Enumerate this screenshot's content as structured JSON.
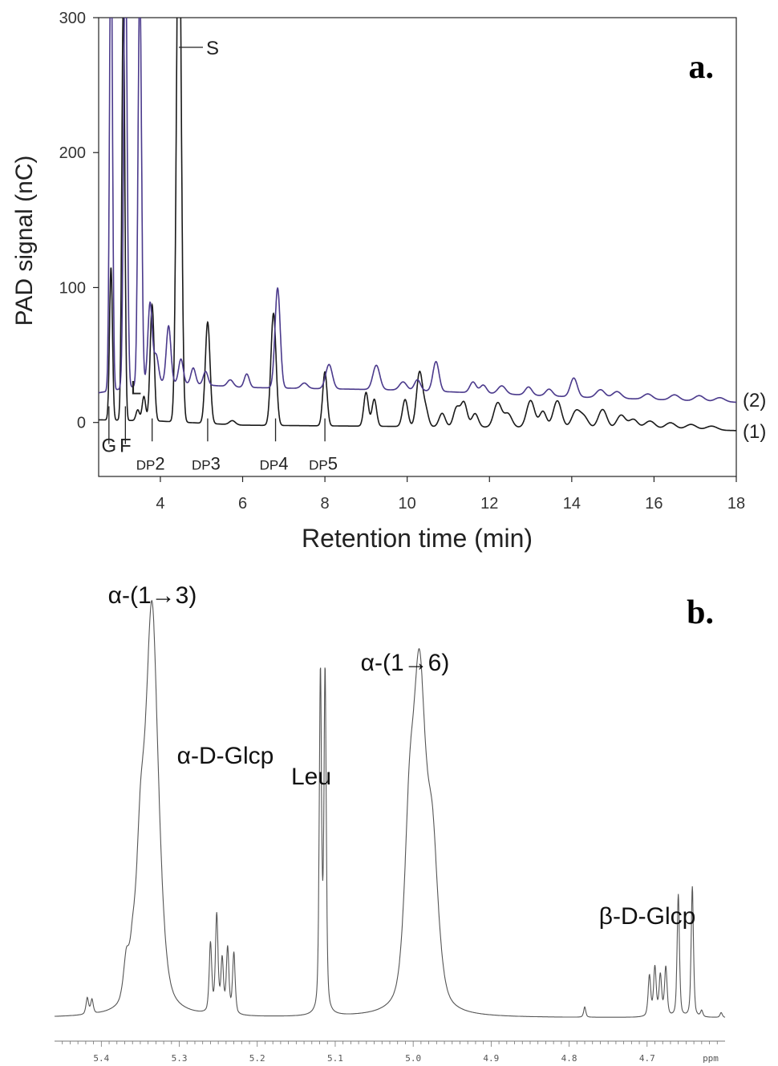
{
  "chart_data": [
    {
      "type": "line",
      "panel_label": "a.",
      "xlabel": "Retention time (min)",
      "ylabel": "PAD signal (nC)",
      "xlim": [
        2.5,
        18
      ],
      "ylim": [
        -40,
        300
      ],
      "x_ticks": [
        "4",
        "6",
        "8",
        "10",
        "12",
        "14",
        "16",
        "18"
      ],
      "y_ticks": [
        "0",
        "100",
        "200",
        "300"
      ],
      "colors": {
        "trace1": "#1a1a1a",
        "trace2": "#4b3a8c"
      },
      "series": [
        {
          "name": "(1)",
          "baseline": [
            [
              2.5,
              2
            ],
            [
              4,
              1
            ],
            [
              6,
              -2
            ],
            [
              10,
              -3
            ],
            [
              14,
              -4
            ],
            [
              18,
              -6
            ]
          ],
          "peaks": [
            [
              2.8,
              113,
              0.035
            ],
            [
              3.1,
              310,
              0.035
            ],
            [
              3.45,
              8,
              0.04
            ],
            [
              3.6,
              18,
              0.04
            ],
            [
              3.8,
              86,
              0.045
            ],
            [
              4.45,
              420,
              0.05
            ],
            [
              5.15,
              75,
              0.05
            ],
            [
              5.75,
              3,
              0.06
            ],
            [
              6.75,
              83,
              0.05
            ],
            [
              8.0,
              40,
              0.04
            ],
            [
              9.0,
              25,
              0.04
            ],
            [
              9.2,
              20,
              0.04
            ],
            [
              9.95,
              20,
              0.045
            ],
            [
              10.3,
              40,
              0.05
            ],
            [
              10.45,
              12,
              0.045
            ],
            [
              10.85,
              10,
              0.05
            ],
            [
              11.2,
              14,
              0.05
            ],
            [
              11.38,
              18,
              0.05
            ],
            [
              11.65,
              10,
              0.05
            ],
            [
              12.2,
              18,
              0.06
            ],
            [
              12.45,
              10,
              0.06
            ],
            [
              13.0,
              20,
              0.06
            ],
            [
              13.3,
              12,
              0.05
            ],
            [
              13.65,
              20,
              0.06
            ],
            [
              14.1,
              12,
              0.06
            ],
            [
              14.3,
              8,
              0.06
            ],
            [
              14.75,
              14,
              0.06
            ],
            [
              15.2,
              10,
              0.06
            ],
            [
              15.5,
              7,
              0.06
            ],
            [
              15.9,
              6,
              0.07
            ],
            [
              16.4,
              5,
              0.07
            ],
            [
              16.9,
              4,
              0.07
            ],
            [
              17.4,
              3,
              0.07
            ]
          ]
        },
        {
          "name": "(2)",
          "baseline": [
            [
              2.5,
              22
            ],
            [
              4,
              30
            ],
            [
              6,
              26
            ],
            [
              10,
              24
            ],
            [
              14,
              19
            ],
            [
              18,
              15
            ]
          ],
          "peaks": [
            [
              2.8,
              350,
              0.035
            ],
            [
              3.15,
              340,
              0.04
            ],
            [
              3.5,
              300,
              0.04
            ],
            [
              3.75,
              60,
              0.05
            ],
            [
              3.9,
              20,
              0.05
            ],
            [
              4.2,
              42,
              0.05
            ],
            [
              4.5,
              18,
              0.05
            ],
            [
              4.8,
              12,
              0.05
            ],
            [
              5.1,
              10,
              0.05
            ],
            [
              5.7,
              5,
              0.06
            ],
            [
              6.1,
              10,
              0.05
            ],
            [
              6.85,
              74,
              0.05
            ],
            [
              7.5,
              4,
              0.06
            ],
            [
              8.1,
              18,
              0.06
            ],
            [
              9.25,
              18,
              0.06
            ],
            [
              9.9,
              6,
              0.06
            ],
            [
              10.25,
              8,
              0.05
            ],
            [
              10.7,
              22,
              0.05
            ],
            [
              11.6,
              8,
              0.05
            ],
            [
              11.85,
              6,
              0.05
            ],
            [
              12.3,
              6,
              0.06
            ],
            [
              12.95,
              6,
              0.05
            ],
            [
              13.45,
              5,
              0.05
            ],
            [
              14.05,
              14,
              0.05
            ],
            [
              14.7,
              6,
              0.06
            ],
            [
              15.1,
              5,
              0.06
            ],
            [
              15.85,
              4,
              0.06
            ],
            [
              16.5,
              4,
              0.06
            ],
            [
              17.1,
              4,
              0.06
            ],
            [
              17.6,
              3,
              0.06
            ]
          ]
        }
      ],
      "trace_labels": [
        "(1)",
        "(2)"
      ],
      "annotations": [
        {
          "text": "G",
          "x": 2.75
        },
        {
          "text": "F",
          "x": 3.15
        },
        {
          "text": "L",
          "x": 3.55
        },
        {
          "text": "S",
          "x": 4.45
        },
        {
          "text": "2",
          "prefix": "DP",
          "x": 3.8
        },
        {
          "text": "3",
          "prefix": "DP",
          "x": 5.15
        },
        {
          "text": "4",
          "prefix": "DP",
          "x": 6.8
        },
        {
          "text": "5",
          "prefix": "DP",
          "x": 8.0
        }
      ]
    },
    {
      "type": "line",
      "panel_label": "b.",
      "xlabel": "",
      "x_unit_label": "ppm",
      "xlim": [
        5.46,
        4.6
      ],
      "ylim": [
        0,
        1.0
      ],
      "x_ticks": [
        "5.4",
        "5.3",
        "5.2",
        "5.1",
        "5.0",
        "4.9",
        "4.8",
        "4.7"
      ],
      "y_ticks": [],
      "colors": {
        "trace": "#555555"
      },
      "series": [
        {
          "name": "",
          "baseline": 0.0,
          "peaks": [
            [
              5.418,
              0.04,
              0.0018
            ],
            [
              5.412,
              0.035,
              0.0018
            ],
            [
              5.368,
              0.1,
              0.004
            ],
            [
              5.36,
              0.08,
              0.004
            ],
            [
              5.335,
              0.99,
              0.009
            ],
            [
              5.35,
              0.3,
              0.006
            ],
            [
              5.26,
              0.17,
              0.0018
            ],
            [
              5.252,
              0.24,
              0.0018
            ],
            [
              5.245,
              0.13,
              0.0018
            ],
            [
              5.238,
              0.16,
              0.0018
            ],
            [
              5.23,
              0.15,
              0.0018
            ],
            [
              5.119,
              0.83,
              0.0016
            ],
            [
              5.113,
              0.83,
              0.0016
            ],
            [
              4.992,
              0.78,
              0.009
            ],
            [
              5.005,
              0.35,
              0.007
            ],
            [
              4.975,
              0.35,
              0.008
            ],
            [
              4.78,
              0.025,
              0.0015
            ],
            [
              4.697,
              0.1,
              0.0018
            ],
            [
              4.69,
              0.12,
              0.0018
            ],
            [
              4.683,
              0.1,
              0.0018
            ],
            [
              4.676,
              0.12,
              0.0018
            ],
            [
              4.66,
              0.3,
              0.0016
            ],
            [
              4.642,
              0.32,
              0.0016
            ],
            [
              4.63,
              0.015,
              0.0016
            ],
            [
              4.605,
              0.012,
              0.0016
            ]
          ]
        }
      ],
      "annotations": [
        {
          "text": "α-(1→3)",
          "x": 5.335,
          "kind": "alpha13"
        },
        {
          "text": "α-D-Glcp",
          "x": 5.245,
          "kind": "alphaD"
        },
        {
          "text": "Leu",
          "x": 5.116,
          "kind": "leu"
        },
        {
          "text": "α-(1→6)",
          "x": 4.99,
          "kind": "alpha16"
        },
        {
          "text": "β-D-Glcp",
          "x": 4.67,
          "kind": "betaD"
        }
      ]
    }
  ]
}
